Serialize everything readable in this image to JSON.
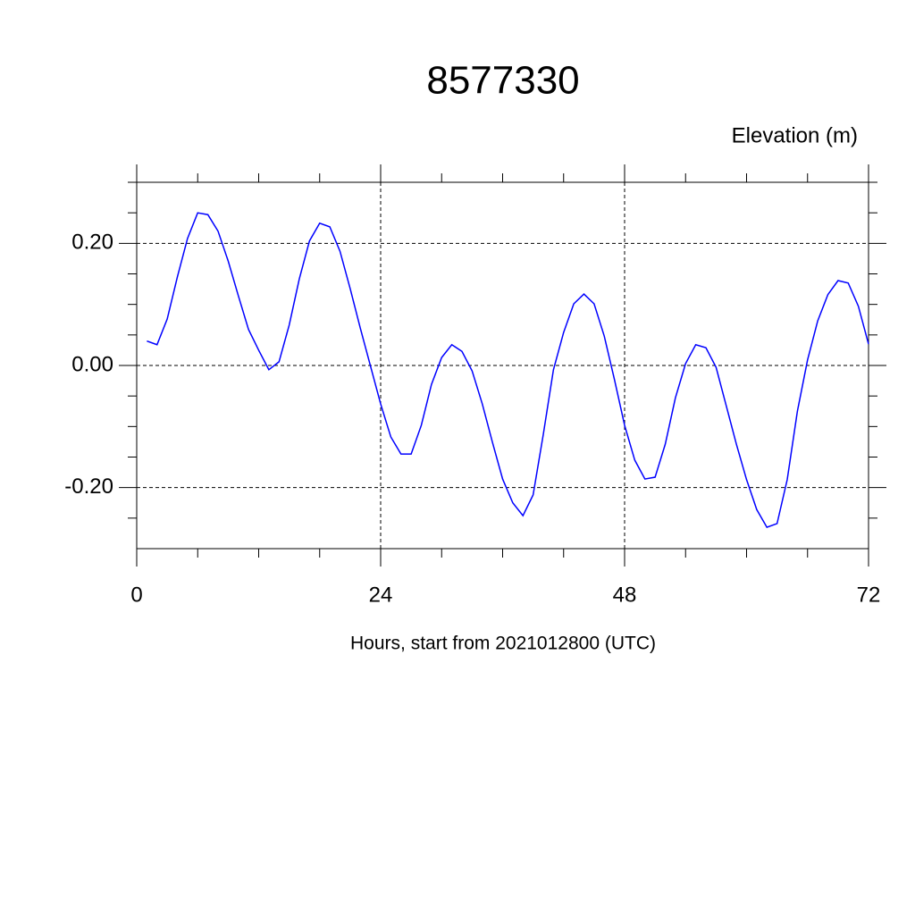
{
  "chart_data": {
    "type": "line",
    "title": "8577330",
    "subtitle": "Elevation (m)",
    "x_label": "Hours, start from 2021012800 (UTC)",
    "x": [
      1,
      2,
      3,
      4,
      5,
      6,
      7,
      8,
      9,
      10,
      11,
      12,
      13,
      14,
      15,
      16,
      17,
      18,
      19,
      20,
      21,
      22,
      23,
      24,
      25,
      26,
      27,
      28,
      29,
      30,
      31,
      32,
      33,
      34,
      35,
      36,
      37,
      38,
      39,
      40,
      41,
      42,
      43,
      44,
      45,
      46,
      47,
      48,
      49,
      50,
      51,
      52,
      53,
      54,
      55,
      56,
      57,
      58,
      59,
      60,
      61,
      62,
      63,
      64,
      65,
      66,
      67,
      68,
      69,
      70,
      71,
      72
    ],
    "series": [
      {
        "color": "#0000ff",
        "values": [
          0.04,
          0.034,
          0.076,
          0.145,
          0.208,
          0.25,
          0.247,
          0.22,
          0.171,
          0.114,
          0.059,
          0.025,
          -0.007,
          0.006,
          0.066,
          0.142,
          0.204,
          0.233,
          0.227,
          0.187,
          0.126,
          0.061,
          -0.001,
          -0.063,
          -0.117,
          -0.145,
          -0.145,
          -0.098,
          -0.031,
          0.013,
          0.034,
          0.023,
          -0.009,
          -0.063,
          -0.126,
          -0.186,
          -0.225,
          -0.246,
          -0.212,
          -0.113,
          -0.007,
          0.054,
          0.101,
          0.117,
          0.101,
          0.048,
          -0.023,
          -0.098,
          -0.155,
          -0.186,
          -0.183,
          -0.129,
          -0.053,
          0.003,
          0.034,
          0.029,
          -0.003,
          -0.066,
          -0.129,
          -0.187,
          -0.236,
          -0.265,
          -0.259,
          -0.187,
          -0.075,
          0.009,
          0.073,
          0.116,
          0.139,
          0.135,
          0.097,
          0.035
        ]
      }
    ],
    "xlim": [
      0,
      72
    ],
    "xticks": [
      0,
      24,
      48,
      72
    ],
    "ylim": [
      -0.3,
      0.3
    ],
    "yticks": [
      {
        "value": -0.2,
        "label": "-0.20"
      },
      {
        "value": 0,
        "label": "0.00"
      },
      {
        "value": 0.2,
        "label": "0.20"
      }
    ],
    "x_minor_per_major": 3,
    "y_minor_per_major": 3,
    "grid": true
  }
}
